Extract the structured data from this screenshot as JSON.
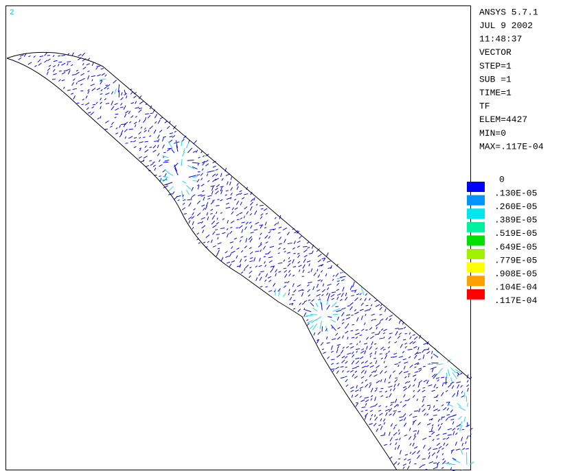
{
  "plot": {
    "window_number": "2"
  },
  "header": {
    "lines": [
      "ANSYS 5.7.1",
      "JUL  9 2002",
      "11:48:37",
      "VECTOR",
      "STEP=1",
      "SUB =1",
      "TIME=1",
      "TF",
      "ELEM=4427",
      "MIN=0",
      "MAX=.117E-04"
    ]
  },
  "legend": {
    "start_label": "0",
    "entries": [
      {
        "label": ".130E-05",
        "color": "#0000ff"
      },
      {
        "label": ".260E-05",
        "color": "#0094ff"
      },
      {
        "label": ".389E-05",
        "color": "#00e6f0"
      },
      {
        "label": ".519E-05",
        "color": "#00f0a0"
      },
      {
        "label": ".649E-05",
        "color": "#00e000"
      },
      {
        "label": ".779E-05",
        "color": "#a0f000"
      },
      {
        "label": ".908E-05",
        "color": "#ffff00"
      },
      {
        "label": ".104E-04",
        "color": "#ffa000"
      },
      {
        "label": ".117E-04",
        "color": "#ff0000"
      }
    ]
  }
}
